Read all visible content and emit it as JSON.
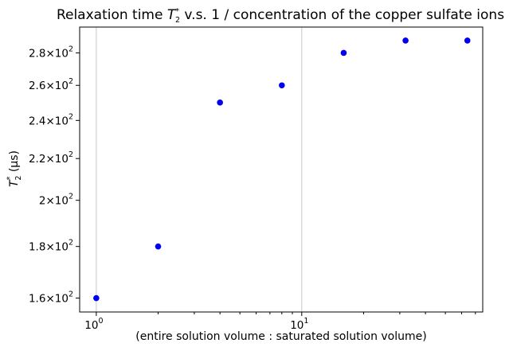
{
  "chart_data": {
    "type": "scatter",
    "title_prefix": "Relaxation time ",
    "title_symbol": "T",
    "title_sub": "2",
    "title_sup": "*",
    "title_suffix": " v.s. 1 / concentration of the copper sulfate ions",
    "xlabel": "(entire solution volume : saturated solution volume)",
    "ylabel_symbol": "T",
    "ylabel_sub": "2",
    "ylabel_sup": "*",
    "ylabel_unit": " (μs)",
    "x_scale": "log",
    "y_scale": "log",
    "xlim": [
      0.83,
      76
    ],
    "ylim": [
      155,
      297
    ],
    "x_major_ticks": [
      {
        "value": 1,
        "base": "10",
        "exp": "0"
      },
      {
        "value": 10,
        "base": "10",
        "exp": "1"
      }
    ],
    "y_ticks": [
      {
        "value": 160,
        "mantissa": "1.6",
        "base": "10",
        "exp": "2"
      },
      {
        "value": 180,
        "mantissa": "1.8",
        "base": "10",
        "exp": "2"
      },
      {
        "value": 200,
        "mantissa": "2",
        "base": "10",
        "exp": "2"
      },
      {
        "value": 220,
        "mantissa": "2.2",
        "base": "10",
        "exp": "2"
      },
      {
        "value": 240,
        "mantissa": "2.4",
        "base": "10",
        "exp": "2"
      },
      {
        "value": 260,
        "mantissa": "2.6",
        "base": "10",
        "exp": "2"
      },
      {
        "value": 280,
        "mantissa": "2.8",
        "base": "10",
        "exp": "2"
      }
    ],
    "grid": "x-major",
    "marker_color": "#0000ee",
    "x": [
      1,
      2,
      4,
      8,
      16,
      32,
      64
    ],
    "y": [
      160,
      180,
      250,
      260,
      280,
      288,
      288
    ]
  }
}
